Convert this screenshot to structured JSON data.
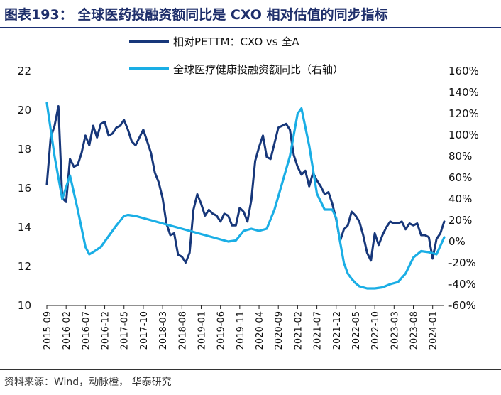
{
  "title": "图表193：  全球医药投融资额同比是 CXO 相对估值的同步指标",
  "source": "资料来源：Wind，动脉橙， 华泰研究",
  "chart_data": {
    "type": "line",
    "y_left": {
      "ylim": [
        10,
        22
      ],
      "ticks": [
        "10",
        "12",
        "14",
        "16",
        "18",
        "20",
        "22"
      ]
    },
    "y_right": {
      "ylim": [
        -60,
        160
      ],
      "ticks": [
        "-60%",
        "-40%",
        "-20%",
        "0%",
        "20%",
        "40%",
        "60%",
        "80%",
        "100%",
        "120%",
        "140%",
        "160%"
      ]
    },
    "x_ticks": [
      "2015-09",
      "2016-02",
      "2016-07",
      "2016-12",
      "2017-05",
      "2017-10",
      "2018-03",
      "2018-08",
      "2019-01",
      "2019-06",
      "2019-11",
      "2020-04",
      "2020-09",
      "2021-02",
      "2021-07",
      "2021-12",
      "2022-05",
      "2022-10",
      "2023-03",
      "2023-08",
      "2024-01"
    ],
    "series": [
      {
        "name": "相对PETTM：CXO vs 全A",
        "axis": "left",
        "color": "#17377a",
        "x": [
          "2015-09",
          "2015-10",
          "2015-11",
          "2015-12",
          "2016-01",
          "2016-02",
          "2016-03",
          "2016-04",
          "2016-05",
          "2016-06",
          "2016-07",
          "2016-08",
          "2016-09",
          "2016-10",
          "2016-11",
          "2016-12",
          "2017-01",
          "2017-02",
          "2017-03",
          "2017-04",
          "2017-05",
          "2017-06",
          "2017-07",
          "2017-08",
          "2017-09",
          "2017-10",
          "2017-11",
          "2017-12",
          "2018-01",
          "2018-02",
          "2018-03",
          "2018-04",
          "2018-05",
          "2018-06",
          "2018-07",
          "2018-08",
          "2018-09",
          "2018-10",
          "2018-11",
          "2018-12",
          "2019-01",
          "2019-02",
          "2019-03",
          "2019-04",
          "2019-05",
          "2019-06",
          "2019-07",
          "2019-08",
          "2019-09",
          "2019-10",
          "2019-11",
          "2019-12",
          "2020-01",
          "2020-02",
          "2020-03",
          "2020-04",
          "2020-05",
          "2020-06",
          "2020-07",
          "2020-08",
          "2020-09",
          "2020-10",
          "2020-11",
          "2020-12",
          "2021-01",
          "2021-02",
          "2021-03",
          "2021-04",
          "2021-05",
          "2021-06",
          "2021-07",
          "2021-08",
          "2021-09",
          "2021-10",
          "2021-11",
          "2021-12",
          "2022-01",
          "2022-02",
          "2022-03",
          "2022-04",
          "2022-05",
          "2022-06",
          "2022-07",
          "2022-08",
          "2022-09",
          "2022-10",
          "2022-11",
          "2022-12",
          "2023-01",
          "2023-02",
          "2023-03",
          "2023-04",
          "2023-05",
          "2023-06",
          "2023-07",
          "2023-08",
          "2023-09",
          "2023-10",
          "2023-11",
          "2023-12",
          "2024-01",
          "2024-02",
          "2024-03",
          "2024-04"
        ],
        "values": [
          16.2,
          18.6,
          19.2,
          20.2,
          15.5,
          15.3,
          17.5,
          17.1,
          17.2,
          17.8,
          18.7,
          18.2,
          19.2,
          18.6,
          19.3,
          19.4,
          18.7,
          18.8,
          19.1,
          19.2,
          19.5,
          19.0,
          18.4,
          18.2,
          18.6,
          19.0,
          18.4,
          17.8,
          16.8,
          16.3,
          15.5,
          14.2,
          13.6,
          13.7,
          12.6,
          12.5,
          12.2,
          12.7,
          14.9,
          15.7,
          15.2,
          14.6,
          14.9,
          14.7,
          14.6,
          14.3,
          14.7,
          14.6,
          14.1,
          14.1,
          15.0,
          14.8,
          14.3,
          15.4,
          17.4,
          18.1,
          18.7,
          17.6,
          17.5,
          18.3,
          19.1,
          19.2,
          19.3,
          19.0,
          17.7,
          17.1,
          16.7,
          16.9,
          16.1,
          16.8,
          16.4,
          16.1,
          15.7,
          15.8,
          15.2,
          14.4,
          13.3,
          13.9,
          14.1,
          14.8,
          14.6,
          14.3,
          13.6,
          12.7,
          12.3,
          13.7,
          13.1,
          13.6,
          14.0,
          14.3,
          14.2,
          14.2,
          14.3,
          13.9,
          14.2,
          14.1,
          14.2,
          13.6,
          13.6,
          13.5,
          12.4,
          13.4,
          13.7,
          14.3
        ]
      },
      {
        "name": "全球医疗健康投融资额同比（右轴）",
        "axis": "right",
        "color": "#1aaee5",
        "x": [
          "2015-09",
          "2015-11",
          "2016-01",
          "2016-03",
          "2016-05",
          "2016-07",
          "2016-08",
          "2016-09",
          "2016-11",
          "2017-01",
          "2017-03",
          "2017-05",
          "2017-06",
          "2017-08",
          "2017-10",
          "2017-12",
          "2018-02",
          "2018-04",
          "2018-06",
          "2018-08",
          "2018-10",
          "2018-12",
          "2019-02",
          "2019-04",
          "2019-06",
          "2019-08",
          "2019-10",
          "2019-12",
          "2020-02",
          "2020-04",
          "2020-06",
          "2020-08",
          "2020-10",
          "2020-12",
          "2021-02",
          "2021-03",
          "2021-05",
          "2021-07",
          "2021-09",
          "2021-11",
          "2021-12",
          "2022-01",
          "2022-02",
          "2022-03",
          "2022-04",
          "2022-05",
          "2022-06",
          "2022-08",
          "2022-10",
          "2022-12",
          "2023-02",
          "2023-04",
          "2023-06",
          "2023-08",
          "2023-10",
          "2023-12",
          "2024-02",
          "2024-04"
        ],
        "values": [
          130,
          80,
          40,
          62,
          30,
          -5,
          -12,
          -10,
          -5,
          5,
          15,
          24,
          25,
          24,
          22,
          20,
          18,
          16,
          14,
          12,
          10,
          8,
          6,
          4,
          2,
          0,
          1,
          10,
          12,
          10,
          12,
          30,
          55,
          80,
          120,
          125,
          90,
          45,
          30,
          30,
          22,
          0,
          -20,
          -30,
          -35,
          -39,
          -42,
          -44,
          -44,
          -43,
          -40,
          -38,
          -30,
          -15,
          -9,
          -10,
          -12,
          4
        ]
      }
    ]
  }
}
